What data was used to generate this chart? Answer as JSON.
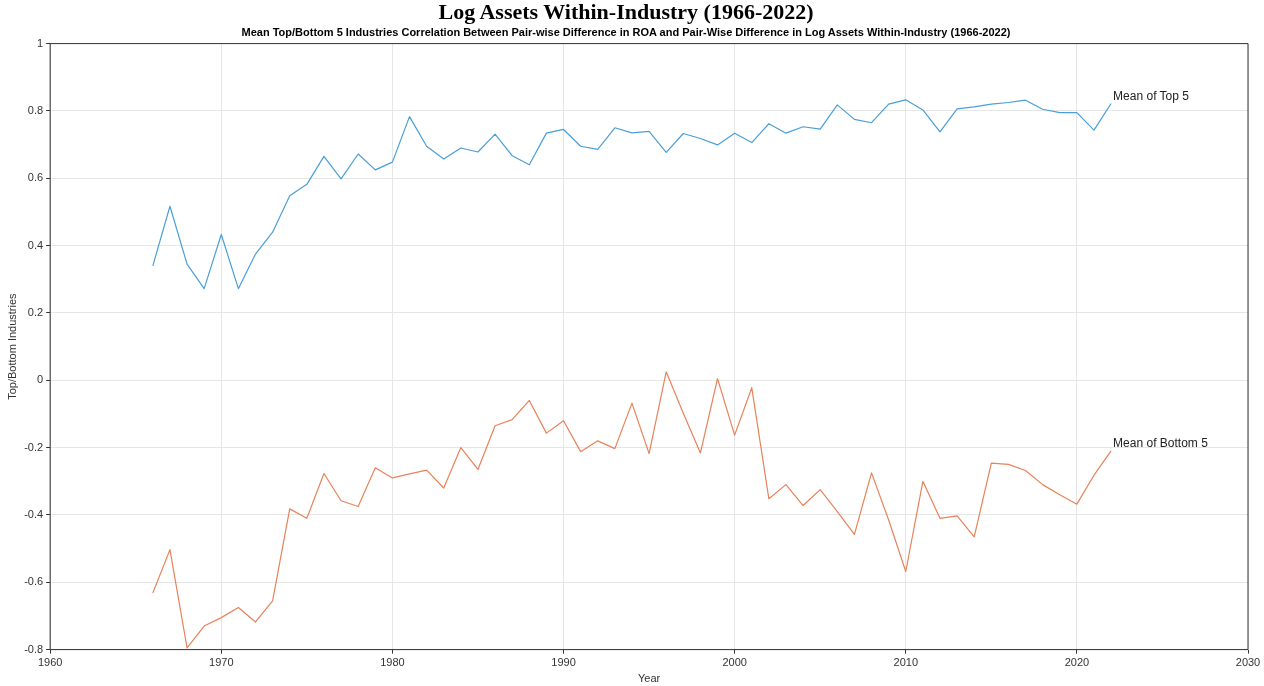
{
  "chart_data": {
    "type": "line",
    "title": "Log Assets Within-Industry (1966-2022)",
    "subtitle": "Mean Top/Bottom 5 Industries Correlation Between Pair-wise Difference in ROA and Pair-Wise Difference in Log Assets Within-Industry (1966-2022)",
    "xlabel": "Year",
    "ylabel": "Top/Bottom Industries",
    "x": [
      1966,
      1967,
      1968,
      1969,
      1970,
      1971,
      1972,
      1973,
      1974,
      1975,
      1976,
      1977,
      1978,
      1979,
      1980,
      1981,
      1982,
      1983,
      1984,
      1985,
      1986,
      1987,
      1988,
      1989,
      1990,
      1991,
      1992,
      1993,
      1994,
      1995,
      1996,
      1997,
      1998,
      1999,
      2000,
      2001,
      2002,
      2003,
      2004,
      2005,
      2006,
      2007,
      2008,
      2009,
      2010,
      2011,
      2012,
      2013,
      2014,
      2015,
      2016,
      2017,
      2018,
      2019,
      2020,
      2021,
      2022
    ],
    "series": [
      {
        "name": "Mean of Top 5",
        "color": "#4a9fd8",
        "values": [
          0.34,
          0.517,
          0.345,
          0.272,
          0.433,
          0.272,
          0.375,
          0.44,
          0.548,
          0.582,
          0.665,
          0.598,
          0.672,
          0.625,
          0.648,
          0.783,
          0.695,
          0.657,
          0.69,
          0.678,
          0.731,
          0.667,
          0.64,
          0.734,
          0.745,
          0.695,
          0.686,
          0.75,
          0.735,
          0.739,
          0.677,
          0.733,
          0.718,
          0.699,
          0.734,
          0.706,
          0.762,
          0.734,
          0.753,
          0.746,
          0.818,
          0.775,
          0.765,
          0.82,
          0.833,
          0.803,
          0.738,
          0.806,
          0.812,
          0.82,
          0.825,
          0.832,
          0.805,
          0.795,
          0.795,
          0.743,
          0.822
        ]
      },
      {
        "name": "Mean of Bottom 5",
        "color": "#e8825a",
        "values": [
          -0.632,
          -0.503,
          -0.795,
          -0.73,
          -0.705,
          -0.675,
          -0.718,
          -0.655,
          -0.382,
          -0.41,
          -0.277,
          -0.358,
          -0.375,
          -0.26,
          -0.29,
          -0.278,
          -0.267,
          -0.32,
          -0.2,
          -0.265,
          -0.135,
          -0.117,
          -0.06,
          -0.157,
          -0.12,
          -0.212,
          -0.18,
          -0.203,
          -0.068,
          -0.218,
          0.025,
          -0.098,
          -0.216,
          0.005,
          -0.163,
          -0.022,
          -0.352,
          -0.31,
          -0.372,
          -0.325,
          -0.39,
          -0.458,
          -0.275,
          -0.415,
          -0.568,
          -0.3,
          -0.41,
          -0.403,
          -0.465,
          -0.246,
          -0.25,
          -0.268,
          -0.31,
          -0.34,
          -0.368,
          -0.282,
          -0.21
        ]
      }
    ],
    "xlim": [
      1960,
      2030
    ],
    "xticks": [
      1960,
      1970,
      1980,
      1990,
      2000,
      2010,
      2020,
      2030
    ],
    "ylim": [
      -0.8,
      1
    ],
    "yticks": [
      -0.8,
      -0.6,
      -0.4,
      -0.2,
      0,
      0.2,
      0.4,
      0.6,
      0.8,
      1
    ],
    "grid": true,
    "legend": false,
    "marker": "none",
    "line_style": "solid"
  }
}
